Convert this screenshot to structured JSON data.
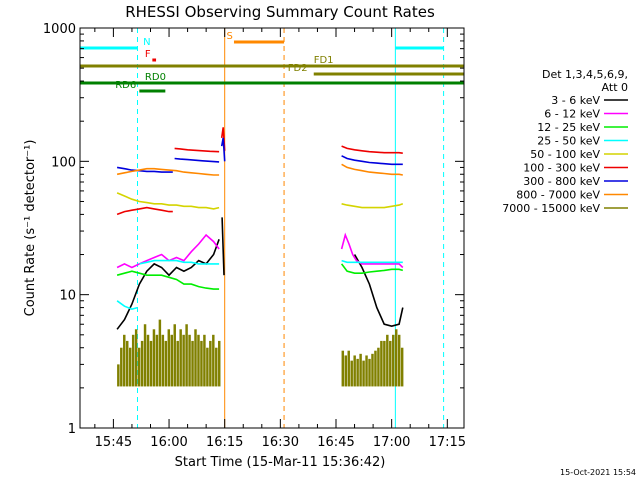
{
  "chart_data": {
    "type": "line",
    "title": "RHESSI Observing Summary Count Rates",
    "xlabel": "Start Time (15-Mar-11 15:36:42)",
    "ylabel": "Count Rate (s⁻¹ detector⁻¹)",
    "y_scale": "log",
    "ylim": [
      1,
      1000
    ],
    "xlim_minutes_after_1536": [
      0,
      103.5
    ],
    "x_ticks": [
      {
        "minute": 9,
        "label": "15:45"
      },
      {
        "minute": 24,
        "label": "16:00"
      },
      {
        "minute": 39,
        "label": "16:15"
      },
      {
        "minute": 54,
        "label": "16:30"
      },
      {
        "minute": 69,
        "label": "16:45"
      },
      {
        "minute": 84,
        "label": "17:00"
      },
      {
        "minute": 99,
        "label": "17:15"
      }
    ],
    "y_ticks": [
      {
        "value": 1,
        "label": "1"
      },
      {
        "value": 10,
        "label": "10"
      },
      {
        "value": 100,
        "label": "100"
      },
      {
        "value": 1000,
        "label": "1000"
      }
    ],
    "legend": {
      "position": "right",
      "header": [
        "Det 1,3,4,5,6,9,",
        "Att 0"
      ],
      "entries": [
        {
          "label": "3 - 6 keV",
          "color": "#000000"
        },
        {
          "label": "6 - 12 keV",
          "color": "#ff00ff"
        },
        {
          "label": "12 - 25 keV",
          "color": "#00ee00"
        },
        {
          "label": "25 - 50 keV",
          "color": "#00ffff"
        },
        {
          "label": "50 - 100 keV",
          "color": "#d4d400"
        },
        {
          "label": "100 - 300 keV",
          "color": "#ee0000"
        },
        {
          "label": "300 - 800 keV",
          "color": "#0000dd"
        },
        {
          "label": "800 - 7000 keV",
          "color": "#ff8800"
        },
        {
          "label": "7000 - 15000 keV",
          "color": "#808000"
        }
      ]
    },
    "series": [
      {
        "name": "3 - 6 keV",
        "color": "#000000",
        "style": "line",
        "segments": [
          {
            "x": [
              10,
              12,
              14,
              16,
              18,
              20,
              22,
              24,
              26,
              28,
              30,
              32,
              34,
              36,
              37.5
            ],
            "y": [
              5.5,
              6.5,
              8.5,
              12,
              15,
              17,
              16,
              14,
              16,
              15,
              16,
              18,
              17,
              20,
              26
            ]
          },
          {
            "x": [
              38.3,
              38.8
            ],
            "y": [
              38,
              14
            ]
          },
          {
            "x": [
              74,
              76,
              78,
              80,
              82,
              84,
              86,
              87
            ],
            "y": [
              20,
              16,
              12,
              8,
              6,
              5.8,
              6,
              8
            ]
          }
        ]
      },
      {
        "name": "6 - 12 keV",
        "color": "#ff00ff",
        "style": "line",
        "segments": [
          {
            "x": [
              10,
              12,
              14,
              16,
              18,
              20,
              22,
              24,
              26,
              28,
              30,
              32,
              34,
              36,
              37.5
            ],
            "y": [
              16,
              17,
              16,
              17,
              18,
              19,
              20,
              18,
              19,
              18,
              21,
              24,
              28,
              25,
              22
            ]
          },
          {
            "x": [
              70.5,
              71.5,
              72.5,
              73.5,
              74.5,
              76,
              78,
              80,
              82,
              84,
              86,
              87
            ],
            "y": [
              22,
              28,
              24,
              20,
              18,
              17,
              17,
              17,
              17,
              17,
              17,
              16
            ]
          }
        ]
      },
      {
        "name": "12 - 25 keV",
        "color": "#00ee00",
        "style": "line",
        "segments": [
          {
            "x": [
              10,
              12,
              14,
              16,
              18,
              20,
              22,
              24,
              26,
              28,
              30,
              32,
              34,
              36,
              37.5
            ],
            "y": [
              14,
              14.5,
              15,
              14.5,
              14,
              14,
              14,
              13.5,
              13,
              12,
              12,
              11.5,
              11.2,
              11,
              11
            ]
          },
          {
            "x": [
              70.5,
              72,
              74,
              76,
              78,
              80,
              82,
              84,
              86,
              87
            ],
            "y": [
              17,
              15,
              14.5,
              14.5,
              14.8,
              15,
              15.2,
              15.5,
              15.5,
              15.2
            ]
          }
        ]
      },
      {
        "name": "25 - 50 keV",
        "color": "#00ffff",
        "style": "line",
        "segments": [
          {
            "x": [
              10,
              12,
              14,
              15.5
            ],
            "y": [
              9,
              8.2,
              7.8,
              8
            ]
          },
          {
            "x": [
              16,
              18,
              20,
              22,
              24,
              26,
              28,
              30,
              32,
              34,
              36,
              37.5
            ],
            "y": [
              17,
              17.5,
              18,
              18,
              18,
              18,
              17.5,
              17.5,
              17,
              17,
              17,
              17
            ]
          },
          {
            "x": [
              70.5,
              72,
              74,
              76,
              78,
              80,
              82,
              84,
              86,
              87
            ],
            "y": [
              18,
              17.5,
              17.5,
              17.5,
              17.5,
              17.5,
              17.5,
              17.5,
              17.5,
              17.5
            ]
          }
        ]
      },
      {
        "name": "50 - 100 keV",
        "color": "#d4d400",
        "style": "line",
        "segments": [
          {
            "x": [
              10,
              12,
              14,
              16,
              18,
              20,
              22,
              24,
              26,
              28,
              30,
              32,
              34,
              36,
              37.5
            ],
            "y": [
              58,
              55,
              52,
              50,
              49,
              48,
              48,
              47,
              47,
              46,
              46,
              45,
              45,
              44,
              45
            ]
          },
          {
            "x": [
              70.5,
              72,
              74,
              76,
              78,
              80,
              82,
              84,
              86,
              87
            ],
            "y": [
              48,
              47,
              46,
              45,
              45,
              45,
              45,
              46,
              47,
              48
            ]
          }
        ]
      },
      {
        "name": "100 - 300 keV",
        "color": "#ee0000",
        "style": "line",
        "segments": [
          {
            "x": [
              10,
              12,
              14,
              16,
              18,
              20,
              22,
              24,
              25
            ],
            "y": [
              40,
              42,
              43,
              44,
              45,
              44,
              43,
              42,
              42
            ]
          },
          {
            "x": [
              25.5,
              27,
              29,
              31,
              33,
              35,
              37.5
            ],
            "y": [
              125,
              124,
              122,
              121,
              120,
              119,
              118
            ]
          },
          {
            "x": [
              38.2,
              38.6,
              39
            ],
            "y": [
              150,
              180,
              120
            ]
          },
          {
            "x": [
              70.5,
              72,
              74,
              76,
              78,
              80,
              82,
              84,
              86,
              87
            ],
            "y": [
              130,
              125,
              122,
              120,
              118,
              117,
              116,
              116,
              116,
              115
            ]
          }
        ]
      },
      {
        "name": "300 - 800 keV",
        "color": "#0000dd",
        "style": "line",
        "segments": [
          {
            "x": [
              10,
              12,
              14,
              16,
              18,
              20,
              22,
              24,
              25
            ],
            "y": [
              90,
              88,
              86,
              85,
              84,
              84,
              83,
              83,
              83
            ]
          },
          {
            "x": [
              25.5,
              27,
              29,
              31,
              33,
              35,
              37.5
            ],
            "y": [
              105,
              104,
              103,
              102,
              101,
              100,
              99
            ]
          },
          {
            "x": [
              38.2,
              38.6,
              39
            ],
            "y": [
              130,
              150,
              100
            ]
          },
          {
            "x": [
              70.5,
              72,
              74,
              76,
              78,
              80,
              82,
              84,
              86,
              87
            ],
            "y": [
              110,
              105,
              102,
              100,
              98,
              97,
              96,
              95,
              95,
              95
            ]
          }
        ]
      },
      {
        "name": "800 - 7000 keV",
        "color": "#ff8800",
        "style": "line",
        "segments": [
          {
            "x": [
              10,
              12,
              14,
              16,
              18,
              20,
              22,
              24,
              26,
              28,
              30,
              32,
              34,
              36,
              37.5
            ],
            "y": [
              80,
              82,
              84,
              86,
              88,
              88,
              87,
              86,
              85,
              83,
              82,
              81,
              80,
              79,
              79
            ]
          },
          {
            "x": [
              70.5,
              72,
              74,
              76,
              78,
              80,
              82,
              84,
              86,
              87
            ],
            "y": [
              95,
              90,
              87,
              85,
              83,
              82,
              81,
              80,
              80,
              79
            ]
          }
        ]
      },
      {
        "name": "7000 - 15000 keV",
        "color": "#808000",
        "style": "bars",
        "segments": [
          {
            "x": [
              10.0,
              10.8,
              11.6,
              12.4,
              13.2,
              14.0,
              14.8,
              15.6,
              16.4,
              17.2,
              18.0,
              18.8,
              19.6,
              20.4,
              21.2,
              22.0,
              22.8,
              23.6,
              24.4,
              25.2,
              26.0,
              26.8,
              27.6,
              28.4,
              29.2,
              30.0,
              30.8,
              31.6,
              32.4,
              33.2,
              34.0,
              34.8,
              35.6,
              36.4,
              37.2
            ],
            "y": [
              3.0,
              4.0,
              5.0,
              4.5,
              4.0,
              5.0,
              5.5,
              4.0,
              4.5,
              6.0,
              5.0,
              4.5,
              5.5,
              5.0,
              6.5,
              5.0,
              4.5,
              5.5,
              5.0,
              6.0,
              4.5,
              5.5,
              5.0,
              6.0,
              5.0,
              4.5,
              5.5,
              5.0,
              4.5,
              5.0,
              4.0,
              4.5,
              5.0,
              4.0,
              4.5
            ]
          },
          {
            "x": [
              70.5,
              71.3,
              72.1,
              72.9,
              73.7,
              74.5,
              75.3,
              76.1,
              76.9,
              77.7,
              78.5,
              79.3,
              80.1,
              80.9,
              81.7,
              82.5,
              83.3,
              84.1,
              84.9,
              85.7,
              86.5
            ],
            "y": [
              3.8,
              3.5,
              3.8,
              3.2,
              3.5,
              3.3,
              3.6,
              3.2,
              3.5,
              3.3,
              3.6,
              3.8,
              4.0,
              4.5,
              4.5,
              5.0,
              4.5,
              5.0,
              5.5,
              5.0,
              4.0
            ]
          }
        ]
      }
    ],
    "vertical_markers": [
      {
        "x": 0,
        "color": "#00ffff",
        "style": "solid"
      },
      {
        "x": 15.5,
        "color": "#00ffff",
        "style": "dashed"
      },
      {
        "x": 39,
        "color": "#ff8800",
        "style": "solid"
      },
      {
        "x": 55,
        "color": "#ff8800",
        "style": "dashed"
      },
      {
        "x": 85,
        "color": "#00ffff",
        "style": "solid"
      },
      {
        "x": 98,
        "color": "#00ffff",
        "style": "dashed"
      }
    ],
    "flag_bars": [
      {
        "label": "N",
        "color": "#00ffff",
        "segments": [
          [
            0,
            15.5
          ],
          [
            85,
            98
          ]
        ],
        "level": 0,
        "label_at": 17,
        "label_dx": 0
      },
      {
        "label": "S",
        "color": "#ff8800",
        "segments": [
          [
            41.5,
            55
          ]
        ],
        "level": 1,
        "label_at": 39.5,
        "label_dx": 0
      },
      {
        "label": "F",
        "color": "#ee0000",
        "segments": [
          [
            19.5,
            20.5
          ]
        ],
        "level": 2,
        "label_at": 17.5,
        "label_dx": 0
      },
      {
        "label": "FD1",
        "color": "#808000",
        "segments": [
          [
            0,
            103.5
          ]
        ],
        "level": 3,
        "label_at": 63,
        "label_dx": 0
      },
      {
        "label": "FD2",
        "color": "#808000",
        "segments": [
          [
            63,
            103.5
          ]
        ],
        "level": 4,
        "label_at": 56,
        "label_dx": 0
      },
      {
        "label": "RD0",
        "color": "#008000",
        "segments": [
          [
            0,
            103.5
          ]
        ],
        "level": 5,
        "label_at": 17.5,
        "label_dx": 0
      },
      {
        "label": "RD6",
        "color": "#008000",
        "segments": [
          [
            16,
            23
          ]
        ],
        "level": 6,
        "label_at": 9.5,
        "label_dx": 0
      }
    ],
    "footer_timestamp": "15-Oct-2021 15:54"
  }
}
